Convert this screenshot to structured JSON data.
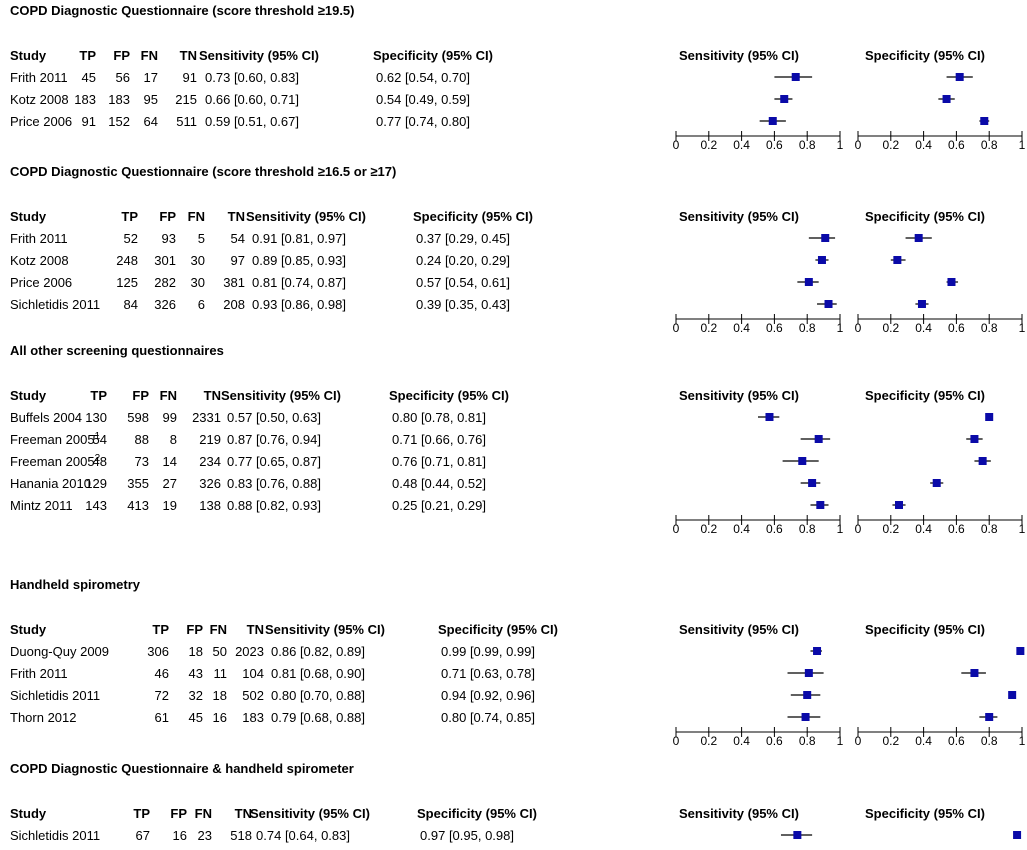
{
  "chart_data": {
    "type": "forest",
    "axis": {
      "min": 0,
      "max": 1,
      "ticks": [
        "0",
        "0.2",
        "0.4",
        "0.6",
        "0.8",
        "1"
      ]
    },
    "marker_color": "#0a0aa8",
    "column_headers": [
      "Study",
      "TP",
      "FP",
      "FN",
      "TN",
      "Sensitivity (95% CI)",
      "Specificity (95% CI)"
    ],
    "plot_headers": [
      "Sensitivity (95% CI)",
      "Specificity (95% CI)"
    ],
    "sections": [
      {
        "title": "COPD Diagnostic Questionnaire (score threshold ≥19.5)",
        "rows": [
          {
            "study": "Frith 2011",
            "sup": "",
            "tp": "45",
            "fp": "56",
            "fn": "17",
            "tn": "91",
            "sens_text": "0.73 [0.60, 0.83]",
            "spec_text": "0.62 [0.54, 0.70]",
            "sens": [
              0.73,
              0.6,
              0.83
            ],
            "spec": [
              0.62,
              0.54,
              0.7
            ]
          },
          {
            "study": "Kotz 2008",
            "sup": "",
            "tp": "183",
            "fp": "183",
            "fn": "95",
            "tn": "215",
            "sens_text": "0.66 [0.60, 0.71]",
            "spec_text": "0.54 [0.49, 0.59]",
            "sens": [
              0.66,
              0.6,
              0.71
            ],
            "spec": [
              0.54,
              0.49,
              0.59
            ]
          },
          {
            "study": "Price 2006",
            "sup": "",
            "tp": "91",
            "fp": "152",
            "fn": "64",
            "tn": "511",
            "sens_text": "0.59 [0.51, 0.67]",
            "spec_text": "0.77 [0.74, 0.80]",
            "sens": [
              0.59,
              0.51,
              0.67
            ],
            "spec": [
              0.77,
              0.74,
              0.8
            ]
          }
        ]
      },
      {
        "title": "COPD Diagnostic Questionnaire (score threshold ≥16.5 or ≥17)",
        "rows": [
          {
            "study": "Frith 2011",
            "sup": "",
            "tp": "52",
            "fp": "93",
            "fn": "5",
            "tn": "54",
            "sens_text": "0.91 [0.81, 0.97]",
            "spec_text": "0.37 [0.29, 0.45]",
            "sens": [
              0.91,
              0.81,
              0.97
            ],
            "spec": [
              0.37,
              0.29,
              0.45
            ]
          },
          {
            "study": "Kotz 2008",
            "sup": "",
            "tp": "248",
            "fp": "301",
            "fn": "30",
            "tn": "97",
            "sens_text": "0.89 [0.85, 0.93]",
            "spec_text": "0.24 [0.20, 0.29]",
            "sens": [
              0.89,
              0.85,
              0.93
            ],
            "spec": [
              0.24,
              0.2,
              0.29
            ]
          },
          {
            "study": "Price 2006",
            "sup": "",
            "tp": "125",
            "fp": "282",
            "fn": "30",
            "tn": "381",
            "sens_text": "0.81 [0.74, 0.87]",
            "spec_text": "0.57 [0.54, 0.61]",
            "sens": [
              0.81,
              0.74,
              0.87
            ],
            "spec": [
              0.57,
              0.54,
              0.61
            ]
          },
          {
            "study": "Sichletidis 2011",
            "sup": "",
            "tp": "84",
            "fp": "326",
            "fn": "6",
            "tn": "208",
            "sens_text": "0.93 [0.86, 0.98]",
            "spec_text": "0.39 [0.35, 0.43]",
            "sens": [
              0.93,
              0.86,
              0.98
            ],
            "spec": [
              0.39,
              0.35,
              0.43
            ]
          }
        ]
      },
      {
        "title": "All other screening questionnaires",
        "rows": [
          {
            "study": "Buffels 2004",
            "sup": "",
            "tp": "130",
            "fp": "598",
            "fn": "99",
            "tn": "2331",
            "sens_text": "0.57 [0.50, 0.63]",
            "spec_text": "0.80 [0.78, 0.81]",
            "sens": [
              0.57,
              0.5,
              0.63
            ],
            "spec": [
              0.8,
              0.78,
              0.81
            ]
          },
          {
            "study": "Freeman 2005",
            "sup": "1",
            "tp": "54",
            "fp": "88",
            "fn": "8",
            "tn": "219",
            "sens_text": "0.87 [0.76, 0.94]",
            "spec_text": "0.71 [0.66, 0.76]",
            "sens": [
              0.87,
              0.76,
              0.94
            ],
            "spec": [
              0.71,
              0.66,
              0.76
            ]
          },
          {
            "study": "Freeman 2005",
            "sup": "2",
            "tp": "48",
            "fp": "73",
            "fn": "14",
            "tn": "234",
            "sens_text": "0.77 [0.65, 0.87]",
            "spec_text": "0.76 [0.71, 0.81]",
            "sens": [
              0.77,
              0.65,
              0.87
            ],
            "spec": [
              0.76,
              0.71,
              0.81
            ]
          },
          {
            "study": "Hanania 2010",
            "sup": "",
            "tp": "129",
            "fp": "355",
            "fn": "27",
            "tn": "326",
            "sens_text": "0.83 [0.76, 0.88]",
            "spec_text": "0.48 [0.44, 0.52]",
            "sens": [
              0.83,
              0.76,
              0.88
            ],
            "spec": [
              0.48,
              0.44,
              0.52
            ]
          },
          {
            "study": "Mintz 2011",
            "sup": "",
            "tp": "143",
            "fp": "413",
            "fn": "19",
            "tn": "138",
            "sens_text": "0.88 [0.82, 0.93]",
            "spec_text": "0.25 [0.21, 0.29]",
            "sens": [
              0.88,
              0.82,
              0.93
            ],
            "spec": [
              0.25,
              0.21,
              0.29
            ]
          }
        ]
      },
      {
        "title": "Handheld spirometry",
        "rows": [
          {
            "study": "Duong-Quy 2009",
            "sup": "",
            "tp": "306",
            "fp": "18",
            "fn": "50",
            "tn": "2023",
            "sens_text": "0.86 [0.82, 0.89]",
            "spec_text": "0.99 [0.99, 0.99]",
            "sens": [
              0.86,
              0.82,
              0.89
            ],
            "spec": [
              0.99,
              0.99,
              0.99
            ]
          },
          {
            "study": "Frith 2011",
            "sup": "",
            "tp": "46",
            "fp": "43",
            "fn": "11",
            "tn": "104",
            "sens_text": "0.81 [0.68, 0.90]",
            "spec_text": "0.71 [0.63, 0.78]",
            "sens": [
              0.81,
              0.68,
              0.9
            ],
            "spec": [
              0.71,
              0.63,
              0.78
            ]
          },
          {
            "study": "Sichletidis 2011",
            "sup": "",
            "tp": "72",
            "fp": "32",
            "fn": "18",
            "tn": "502",
            "sens_text": "0.80 [0.70, 0.88]",
            "spec_text": "0.94 [0.92, 0.96]",
            "sens": [
              0.8,
              0.7,
              0.88
            ],
            "spec": [
              0.94,
              0.92,
              0.96
            ]
          },
          {
            "study": "Thorn 2012",
            "sup": "",
            "tp": "61",
            "fp": "45",
            "fn": "16",
            "tn": "183",
            "sens_text": "0.79 [0.68, 0.88]",
            "spec_text": "0.80 [0.74, 0.85]",
            "sens": [
              0.79,
              0.68,
              0.88
            ],
            "spec": [
              0.8,
              0.74,
              0.85
            ]
          }
        ]
      },
      {
        "title": "COPD Diagnostic Questionnaire & handheld spirometer",
        "rows": [
          {
            "study": "Sichletidis 2011",
            "sup": "",
            "tp": "67",
            "fp": "16",
            "fn": "23",
            "tn": "518",
            "sens_text": "0.74 [0.64, 0.83]",
            "spec_text": "0.97 [0.95, 0.98]",
            "sens": [
              0.74,
              0.64,
              0.83
            ],
            "spec": [
              0.97,
              0.95,
              0.98
            ]
          }
        ]
      }
    ]
  }
}
